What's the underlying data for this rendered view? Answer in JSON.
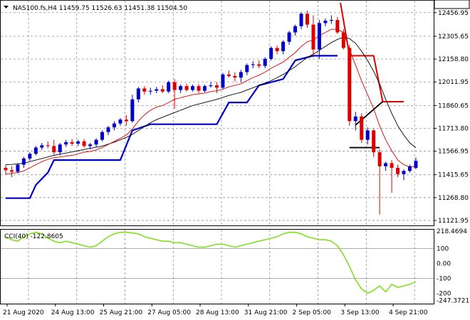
{
  "header": {
    "symbol_line": "NAS100.fs,H4  11459.75 11526.63 11451.38 11504.50"
  },
  "indicator": {
    "label": "CCI(40) -122.8605"
  },
  "colors": {
    "bull": "#0000cc",
    "bear": "#dd0000",
    "ma_fast": "#dd0000",
    "ma_slow": "#000000",
    "stop_line": "#0000cc",
    "cci": "#80e020",
    "grid": "#7f7f7f",
    "price_tag_bg": "#ffffff",
    "separator": "#2f2f2f"
  },
  "chart_data": [
    {
      "type": "candlestick",
      "symbol": "NAS100.fs",
      "timeframe": "H4",
      "last_bar": {
        "open": 11459.75,
        "high": 11526.63,
        "low": 11451.38,
        "close": 11504.5
      },
      "current_price_label": "11504.50",
      "ylim": [
        11121.95,
        12520
      ],
      "y_ticks": [
        "12456.95",
        "12305.65",
        "12158.80",
        "12011.95",
        "11860.65",
        "11713.80",
        "11566.95",
        "11415.65",
        "11268.80",
        "11121.95"
      ],
      "y_tick_values": [
        12456.95,
        12305.65,
        12158.8,
        12011.95,
        11860.65,
        11713.8,
        11566.95,
        11415.65,
        11268.8,
        11121.95
      ],
      "x_labels": [
        "21 Aug 2020",
        "24 Aug 13:00",
        "25 Aug 21:00",
        "27 Aug 05:00",
        "28 Aug 13:00",
        "31 Aug 21:00",
        "2 Sep 05:00",
        "3 Sep 13:00",
        "4 Sep 21:00"
      ],
      "x_label_bars": [
        0,
        8,
        16,
        24,
        32,
        40,
        48,
        56,
        64
      ],
      "grid": true,
      "candles": [
        {
          "o": 11460,
          "h": 11480,
          "l": 11420,
          "c": 11445
        },
        {
          "o": 11445,
          "h": 11470,
          "l": 11400,
          "c": 11435
        },
        {
          "o": 11435,
          "h": 11490,
          "l": 11425,
          "c": 11480
        },
        {
          "o": 11480,
          "h": 11530,
          "l": 11460,
          "c": 11520
        },
        {
          "o": 11520,
          "h": 11560,
          "l": 11505,
          "c": 11550
        },
        {
          "o": 11550,
          "h": 11600,
          "l": 11540,
          "c": 11590
        },
        {
          "o": 11590,
          "h": 11620,
          "l": 11575,
          "c": 11605
        },
        {
          "o": 11605,
          "h": 11630,
          "l": 11585,
          "c": 11600
        },
        {
          "o": 11600,
          "h": 11640,
          "l": 11545,
          "c": 11560
        },
        {
          "o": 11560,
          "h": 11620,
          "l": 11540,
          "c": 11610
        },
        {
          "o": 11610,
          "h": 11640,
          "l": 11595,
          "c": 11625
        },
        {
          "o": 11625,
          "h": 11645,
          "l": 11600,
          "c": 11615
        },
        {
          "o": 11615,
          "h": 11640,
          "l": 11600,
          "c": 11630
        },
        {
          "o": 11630,
          "h": 11645,
          "l": 11590,
          "c": 11600
        },
        {
          "o": 11600,
          "h": 11620,
          "l": 11580,
          "c": 11610
        },
        {
          "o": 11610,
          "h": 11650,
          "l": 11595,
          "c": 11640
        },
        {
          "o": 11640,
          "h": 11700,
          "l": 11630,
          "c": 11690
        },
        {
          "o": 11690,
          "h": 11730,
          "l": 11670,
          "c": 11720
        },
        {
          "o": 11720,
          "h": 11760,
          "l": 11700,
          "c": 11745
        },
        {
          "o": 11745,
          "h": 11780,
          "l": 11730,
          "c": 11770
        },
        {
          "o": 11770,
          "h": 11800,
          "l": 11730,
          "c": 11760
        },
        {
          "o": 11760,
          "h": 11930,
          "l": 11750,
          "c": 11900
        },
        {
          "o": 11900,
          "h": 11980,
          "l": 11880,
          "c": 11970
        },
        {
          "o": 11970,
          "h": 11985,
          "l": 11930,
          "c": 11950
        },
        {
          "o": 11950,
          "h": 11975,
          "l": 11930,
          "c": 11955
        },
        {
          "o": 11955,
          "h": 11980,
          "l": 11940,
          "c": 11965
        },
        {
          "o": 11965,
          "h": 11990,
          "l": 11940,
          "c": 11950
        },
        {
          "o": 11950,
          "h": 12020,
          "l": 11940,
          "c": 12010
        },
        {
          "o": 12010,
          "h": 12030,
          "l": 11840,
          "c": 11960
        },
        {
          "o": 11960,
          "h": 11995,
          "l": 11940,
          "c": 11985
        },
        {
          "o": 11985,
          "h": 12000,
          "l": 11950,
          "c": 11960
        },
        {
          "o": 11960,
          "h": 11995,
          "l": 11950,
          "c": 11985
        },
        {
          "o": 11985,
          "h": 12000,
          "l": 11940,
          "c": 11955
        },
        {
          "o": 11955,
          "h": 11995,
          "l": 11945,
          "c": 11985
        },
        {
          "o": 11985,
          "h": 12010,
          "l": 11975,
          "c": 11990
        },
        {
          "o": 11990,
          "h": 12010,
          "l": 11940,
          "c": 11975
        },
        {
          "o": 11975,
          "h": 12070,
          "l": 11965,
          "c": 12060
        },
        {
          "o": 12060,
          "h": 12085,
          "l": 12040,
          "c": 12050
        },
        {
          "o": 12050,
          "h": 12075,
          "l": 12015,
          "c": 12040
        },
        {
          "o": 12040,
          "h": 12090,
          "l": 12010,
          "c": 12075
        },
        {
          "o": 12075,
          "h": 12130,
          "l": 12055,
          "c": 12120
        },
        {
          "o": 12120,
          "h": 12145,
          "l": 12100,
          "c": 12125
        },
        {
          "o": 12125,
          "h": 12150,
          "l": 12100,
          "c": 12115
        },
        {
          "o": 12115,
          "h": 12170,
          "l": 12100,
          "c": 12160
        },
        {
          "o": 12160,
          "h": 12240,
          "l": 12150,
          "c": 12230
        },
        {
          "o": 12230,
          "h": 12245,
          "l": 12190,
          "c": 12210
        },
        {
          "o": 12210,
          "h": 12280,
          "l": 12190,
          "c": 12270
        },
        {
          "o": 12270,
          "h": 12340,
          "l": 12250,
          "c": 12330
        },
        {
          "o": 12330,
          "h": 12380,
          "l": 12310,
          "c": 12370
        },
        {
          "o": 12370,
          "h": 12460,
          "l": 12350,
          "c": 12450
        },
        {
          "o": 12450,
          "h": 12470,
          "l": 12360,
          "c": 12380
        },
        {
          "o": 12380,
          "h": 12440,
          "l": 12170,
          "c": 12220
        },
        {
          "o": 12220,
          "h": 12410,
          "l": 12160,
          "c": 12390
        },
        {
          "o": 12390,
          "h": 12420,
          "l": 12370,
          "c": 12405
        },
        {
          "o": 12405,
          "h": 12440,
          "l": 12385,
          "c": 12410
        },
        {
          "o": 12410,
          "h": 12430,
          "l": 12320,
          "c": 12330
        },
        {
          "o": 12330,
          "h": 12350,
          "l": 12220,
          "c": 12230
        },
        {
          "o": 12230,
          "h": 12250,
          "l": 11730,
          "c": 11760
        },
        {
          "o": 11760,
          "h": 11820,
          "l": 11700,
          "c": 11790
        },
        {
          "o": 11790,
          "h": 11810,
          "l": 11620,
          "c": 11640
        },
        {
          "o": 11640,
          "h": 11720,
          "l": 11610,
          "c": 11700
        },
        {
          "o": 11700,
          "h": 11710,
          "l": 11530,
          "c": 11560
        },
        {
          "o": 11560,
          "h": 11580,
          "l": 11160,
          "c": 11470
        },
        {
          "o": 11470,
          "h": 11500,
          "l": 11440,
          "c": 11490
        },
        {
          "o": 11490,
          "h": 11510,
          "l": 11300,
          "c": 11460
        },
        {
          "o": 11460,
          "h": 11480,
          "l": 11400,
          "c": 11420
        },
        {
          "o": 11420,
          "h": 11450,
          "l": 11380,
          "c": 11440
        },
        {
          "o": 11440,
          "h": 11480,
          "l": 11430,
          "c": 11470
        },
        {
          "o": 11459.75,
          "h": 11526.63,
          "l": 11451.38,
          "c": 11504.5
        }
      ],
      "ma_fast": [
        11420,
        11425,
        11430,
        11440,
        11460,
        11480,
        11500,
        11515,
        11525,
        11530,
        11535,
        11540,
        11550,
        11560,
        11565,
        11575,
        11590,
        11610,
        11630,
        11650,
        11670,
        11710,
        11760,
        11800,
        11830,
        11850,
        11860,
        11880,
        11900,
        11910,
        11920,
        11930,
        11935,
        11940,
        11950,
        11955,
        11965,
        11980,
        11990,
        12000,
        12020,
        12040,
        12055,
        12075,
        12100,
        12120,
        12140,
        12170,
        12200,
        12240,
        12270,
        12280,
        12310,
        12330,
        12350,
        12350,
        12330,
        12220,
        12120,
        12020,
        11930,
        11840,
        11730,
        11640,
        11570,
        11510,
        11480,
        11465,
        11470
      ],
      "ma_slow": [
        11480,
        11482,
        11485,
        11490,
        11500,
        11510,
        11520,
        11530,
        11540,
        11548,
        11555,
        11562,
        11570,
        11578,
        11585,
        11592,
        11600,
        11612,
        11625,
        11640,
        11655,
        11675,
        11700,
        11725,
        11750,
        11770,
        11785,
        11800,
        11815,
        11830,
        11845,
        11860,
        11870,
        11880,
        11890,
        11900,
        11912,
        11925,
        11935,
        11945,
        11960,
        11975,
        11990,
        12005,
        12020,
        12040,
        12060,
        12085,
        12110,
        12140,
        12170,
        12190,
        12215,
        12240,
        12265,
        12285,
        12300,
        12290,
        12260,
        12210,
        12150,
        12080,
        12000,
        11900,
        11810,
        11730,
        11670,
        11620,
        11590
      ],
      "stop_line": [
        {
          "bar": 0,
          "value": 11265
        },
        {
          "bar": 4,
          "value": 11265
        },
        {
          "bar": 5,
          "value": 11350
        },
        {
          "bar": 7,
          "value": 11430
        },
        {
          "bar": 8,
          "value": 11510
        },
        {
          "bar": 19,
          "value": 11510
        },
        {
          "bar": 21,
          "value": 11700
        },
        {
          "bar": 24,
          "value": 11740
        },
        {
          "bar": 35,
          "value": 11740
        },
        {
          "bar": 37,
          "value": 11880
        },
        {
          "bar": 40,
          "value": 11880
        },
        {
          "bar": 42,
          "value": 11990
        },
        {
          "bar": 46,
          "value": 12030
        },
        {
          "bar": 48,
          "value": 12150
        },
        {
          "bar": 51,
          "value": 12180
        },
        {
          "bar": 55,
          "value": 12180
        }
      ],
      "resistance_line": [
        {
          "bar": 55.5,
          "value": 12520
        },
        {
          "bar": 57,
          "value": 12180
        },
        {
          "bar": 61,
          "value": 12180
        },
        {
          "bar": 62.5,
          "value": 11885
        },
        {
          "bar": 66,
          "value": 11885
        }
      ],
      "pattern_lines": [
        {
          "points": [
            {
              "bar": 57,
              "value": 11590
            },
            {
              "bar": 62,
              "value": 11590
            }
          ]
        },
        {
          "points": [
            {
              "bar": 58,
              "value": 11735
            },
            {
              "bar": 62.5,
              "value": 11885
            }
          ]
        }
      ]
    },
    {
      "type": "line",
      "name": "CCI(40)",
      "current_value": -122.8605,
      "ylim": [
        -260,
        218
      ],
      "y_ticks": [
        "218.4694",
        "100",
        "0.00",
        "-100",
        "-200",
        "-247.3721"
      ],
      "y_tick_values": [
        218.4694,
        100,
        0,
        -100,
        -200,
        -247.3721
      ],
      "levels": [
        100,
        -100
      ],
      "values": [
        180,
        160,
        150,
        180,
        200,
        210,
        200,
        170,
        150,
        140,
        150,
        140,
        130,
        120,
        110,
        120,
        150,
        180,
        200,
        210,
        210,
        205,
        200,
        180,
        170,
        160,
        150,
        150,
        140,
        140,
        130,
        120,
        110,
        110,
        120,
        130,
        130,
        120,
        110,
        120,
        130,
        140,
        150,
        160,
        170,
        180,
        200,
        210,
        210,
        200,
        180,
        170,
        160,
        160,
        150,
        120,
        60,
        -20,
        -110,
        -170,
        -200,
        -180,
        -150,
        -190,
        -140,
        -160,
        -150,
        -140,
        -123
      ]
    }
  ]
}
